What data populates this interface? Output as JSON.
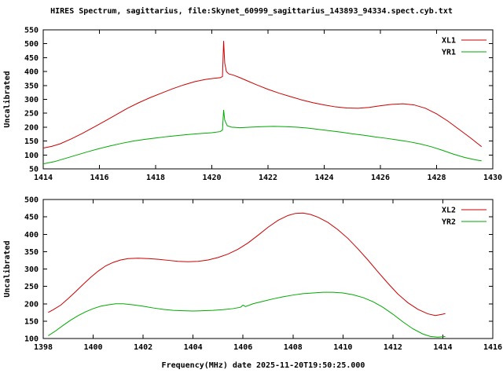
{
  "header": {
    "title": "HIRES Spectrum, sagittarius, file:Skynet_60999_sagittarius_143893_94334.spect.cyb.txt"
  },
  "footer": {
    "xlabel": "Frequency(MHz) date 2025-11-20T19:50:25.000"
  },
  "colors": {
    "axis": "#000000",
    "background": "#ffffff",
    "red_series": "#cc0000",
    "green_series": "#00aa00"
  },
  "chart_data": [
    {
      "type": "line",
      "title": "",
      "xlabel": "",
      "ylabel": "Uncalibrated",
      "xlim": [
        1414,
        1430
      ],
      "ylim": [
        50,
        550
      ],
      "xtick_step": 2,
      "ytick_step": 50,
      "grid": false,
      "legend_position": "top-right",
      "series": [
        {
          "name": "XL1",
          "color": "#cc0000",
          "points": [
            [
              1414.0,
              125
            ],
            [
              1414.3,
              131
            ],
            [
              1414.6,
              140
            ],
            [
              1415.0,
              158
            ],
            [
              1415.4,
              178
            ],
            [
              1415.8,
              200
            ],
            [
              1416.2,
              222
            ],
            [
              1416.6,
              245
            ],
            [
              1417.0,
              268
            ],
            [
              1417.4,
              288
            ],
            [
              1417.8,
              306
            ],
            [
              1418.2,
              322
            ],
            [
              1418.6,
              338
            ],
            [
              1419.0,
              352
            ],
            [
              1419.4,
              364
            ],
            [
              1419.8,
              372
            ],
            [
              1420.1,
              376
            ],
            [
              1420.3,
              378
            ],
            [
              1420.38,
              382
            ],
            [
              1420.42,
              510
            ],
            [
              1420.46,
              430
            ],
            [
              1420.52,
              400
            ],
            [
              1420.6,
              392
            ],
            [
              1420.8,
              386
            ],
            [
              1421.0,
              378
            ],
            [
              1421.3,
              365
            ],
            [
              1421.6,
              352
            ],
            [
              1422.0,
              336
            ],
            [
              1422.4,
              322
            ],
            [
              1422.8,
              310
            ],
            [
              1423.2,
              298
            ],
            [
              1423.6,
              288
            ],
            [
              1424.0,
              280
            ],
            [
              1424.4,
              273
            ],
            [
              1424.8,
              269
            ],
            [
              1425.2,
              268
            ],
            [
              1425.6,
              271
            ],
            [
              1426.0,
              277
            ],
            [
              1426.4,
              282
            ],
            [
              1426.8,
              284
            ],
            [
              1427.2,
              280
            ],
            [
              1427.6,
              268
            ],
            [
              1428.0,
              248
            ],
            [
              1428.4,
              222
            ],
            [
              1428.8,
              192
            ],
            [
              1429.2,
              162
            ],
            [
              1429.5,
              138
            ],
            [
              1429.6,
              130
            ]
          ]
        },
        {
          "name": "YR1",
          "color": "#00aa00",
          "points": [
            [
              1414.0,
              68
            ],
            [
              1414.4,
              76
            ],
            [
              1414.8,
              88
            ],
            [
              1415.2,
              100
            ],
            [
              1415.6,
              112
            ],
            [
              1416.0,
              123
            ],
            [
              1416.4,
              133
            ],
            [
              1416.8,
              142
            ],
            [
              1417.2,
              150
            ],
            [
              1417.6,
              156
            ],
            [
              1418.0,
              161
            ],
            [
              1418.4,
              166
            ],
            [
              1418.8,
              170
            ],
            [
              1419.2,
              174
            ],
            [
              1419.6,
              177
            ],
            [
              1420.0,
              180
            ],
            [
              1420.3,
              184
            ],
            [
              1420.38,
              190
            ],
            [
              1420.42,
              262
            ],
            [
              1420.46,
              225
            ],
            [
              1420.55,
              205
            ],
            [
              1420.7,
              200
            ],
            [
              1421.0,
              198
            ],
            [
              1421.4,
              200
            ],
            [
              1421.8,
              202
            ],
            [
              1422.2,
              203
            ],
            [
              1422.6,
              202
            ],
            [
              1423.0,
              200
            ],
            [
              1423.4,
              197
            ],
            [
              1423.8,
              192
            ],
            [
              1424.2,
              187
            ],
            [
              1424.6,
              182
            ],
            [
              1425.0,
              176
            ],
            [
              1425.4,
              171
            ],
            [
              1425.8,
              165
            ],
            [
              1426.2,
              160
            ],
            [
              1426.6,
              154
            ],
            [
              1427.0,
              148
            ],
            [
              1427.4,
              140
            ],
            [
              1427.8,
              130
            ],
            [
              1428.2,
              117
            ],
            [
              1428.6,
              103
            ],
            [
              1429.0,
              91
            ],
            [
              1429.4,
              82
            ],
            [
              1429.6,
              79
            ]
          ]
        }
      ]
    },
    {
      "type": "line",
      "title": "",
      "xlabel": "Frequency(MHz) date 2025-11-20T19:50:25.000",
      "ylabel": "Uncalibrated",
      "xlim": [
        1398,
        1416
      ],
      "ylim": [
        100,
        500
      ],
      "xtick_step": 2,
      "ytick_step": 50,
      "grid": false,
      "legend_position": "top-right",
      "series": [
        {
          "name": "XL2",
          "color": "#cc0000",
          "points": [
            [
              1398.2,
              175
            ],
            [
              1398.4,
              183
            ],
            [
              1398.7,
              196
            ],
            [
              1399.0,
              215
            ],
            [
              1399.3,
              235
            ],
            [
              1399.6,
              256
            ],
            [
              1399.9,
              276
            ],
            [
              1400.2,
              294
            ],
            [
              1400.5,
              309
            ],
            [
              1400.8,
              319
            ],
            [
              1401.1,
              326
            ],
            [
              1401.4,
              330
            ],
            [
              1401.8,
              331
            ],
            [
              1402.2,
              330
            ],
            [
              1402.6,
              328
            ],
            [
              1403.0,
              325
            ],
            [
              1403.4,
              322
            ],
            [
              1403.8,
              321
            ],
            [
              1404.2,
              322
            ],
            [
              1404.6,
              326
            ],
            [
              1405.0,
              333
            ],
            [
              1405.4,
              343
            ],
            [
              1405.8,
              357
            ],
            [
              1406.2,
              375
            ],
            [
              1406.6,
              397
            ],
            [
              1407.0,
              420
            ],
            [
              1407.4,
              440
            ],
            [
              1407.8,
              454
            ],
            [
              1408.1,
              460
            ],
            [
              1408.4,
              461
            ],
            [
              1408.7,
              457
            ],
            [
              1409.0,
              449
            ],
            [
              1409.4,
              434
            ],
            [
              1409.8,
              413
            ],
            [
              1410.2,
              388
            ],
            [
              1410.6,
              358
            ],
            [
              1411.0,
              326
            ],
            [
              1411.4,
              292
            ],
            [
              1411.8,
              259
            ],
            [
              1412.2,
              228
            ],
            [
              1412.6,
              203
            ],
            [
              1413.0,
              184
            ],
            [
              1413.4,
              171
            ],
            [
              1413.7,
              166
            ],
            [
              1414.0,
              170
            ],
            [
              1414.1,
              172
            ]
          ]
        },
        {
          "name": "YR2",
          "color": "#00aa00",
          "points": [
            [
              1398.2,
              108
            ],
            [
              1398.5,
              122
            ],
            [
              1398.8,
              138
            ],
            [
              1399.1,
              153
            ],
            [
              1399.4,
              166
            ],
            [
              1399.7,
              177
            ],
            [
              1400.0,
              186
            ],
            [
              1400.3,
              193
            ],
            [
              1400.6,
              197
            ],
            [
              1400.9,
              200
            ],
            [
              1401.2,
              200
            ],
            [
              1401.6,
              197
            ],
            [
              1402.0,
              193
            ],
            [
              1402.4,
              188
            ],
            [
              1402.8,
              184
            ],
            [
              1403.2,
              181
            ],
            [
              1403.6,
              180
            ],
            [
              1404.0,
              179
            ],
            [
              1404.4,
              180
            ],
            [
              1404.8,
              181
            ],
            [
              1405.2,
              183
            ],
            [
              1405.6,
              186
            ],
            [
              1405.9,
              190
            ],
            [
              1406.0,
              196
            ],
            [
              1406.1,
              192
            ],
            [
              1406.4,
              200
            ],
            [
              1406.8,
              207
            ],
            [
              1407.2,
              214
            ],
            [
              1407.6,
              220
            ],
            [
              1408.0,
              225
            ],
            [
              1408.4,
              229
            ],
            [
              1408.8,
              231
            ],
            [
              1409.2,
              233
            ],
            [
              1409.6,
              233
            ],
            [
              1410.0,
              231
            ],
            [
              1410.4,
              226
            ],
            [
              1410.8,
              218
            ],
            [
              1411.2,
              206
            ],
            [
              1411.6,
              190
            ],
            [
              1412.0,
              170
            ],
            [
              1412.4,
              148
            ],
            [
              1412.8,
              128
            ],
            [
              1413.2,
              113
            ],
            [
              1413.5,
              106
            ],
            [
              1413.8,
              104
            ],
            [
              1414.0,
              105
            ],
            [
              1414.1,
              106
            ]
          ]
        }
      ]
    }
  ]
}
